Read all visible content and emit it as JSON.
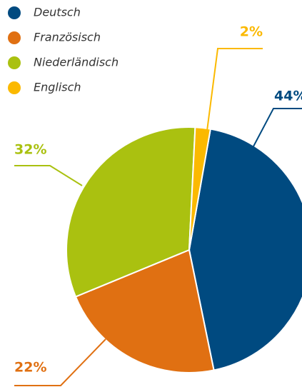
{
  "chart_data": {
    "type": "pie",
    "categories": [
      "Deutsch",
      "Französisch",
      "Niederländisch",
      "Englisch"
    ],
    "values": [
      44,
      22,
      32,
      2
    ],
    "value_labels": [
      "44%",
      "22%",
      "32%",
      "2%"
    ],
    "colors": [
      "#004a80",
      "#e07012",
      "#aac110",
      "#fbb900"
    ],
    "legend": "top-left"
  }
}
